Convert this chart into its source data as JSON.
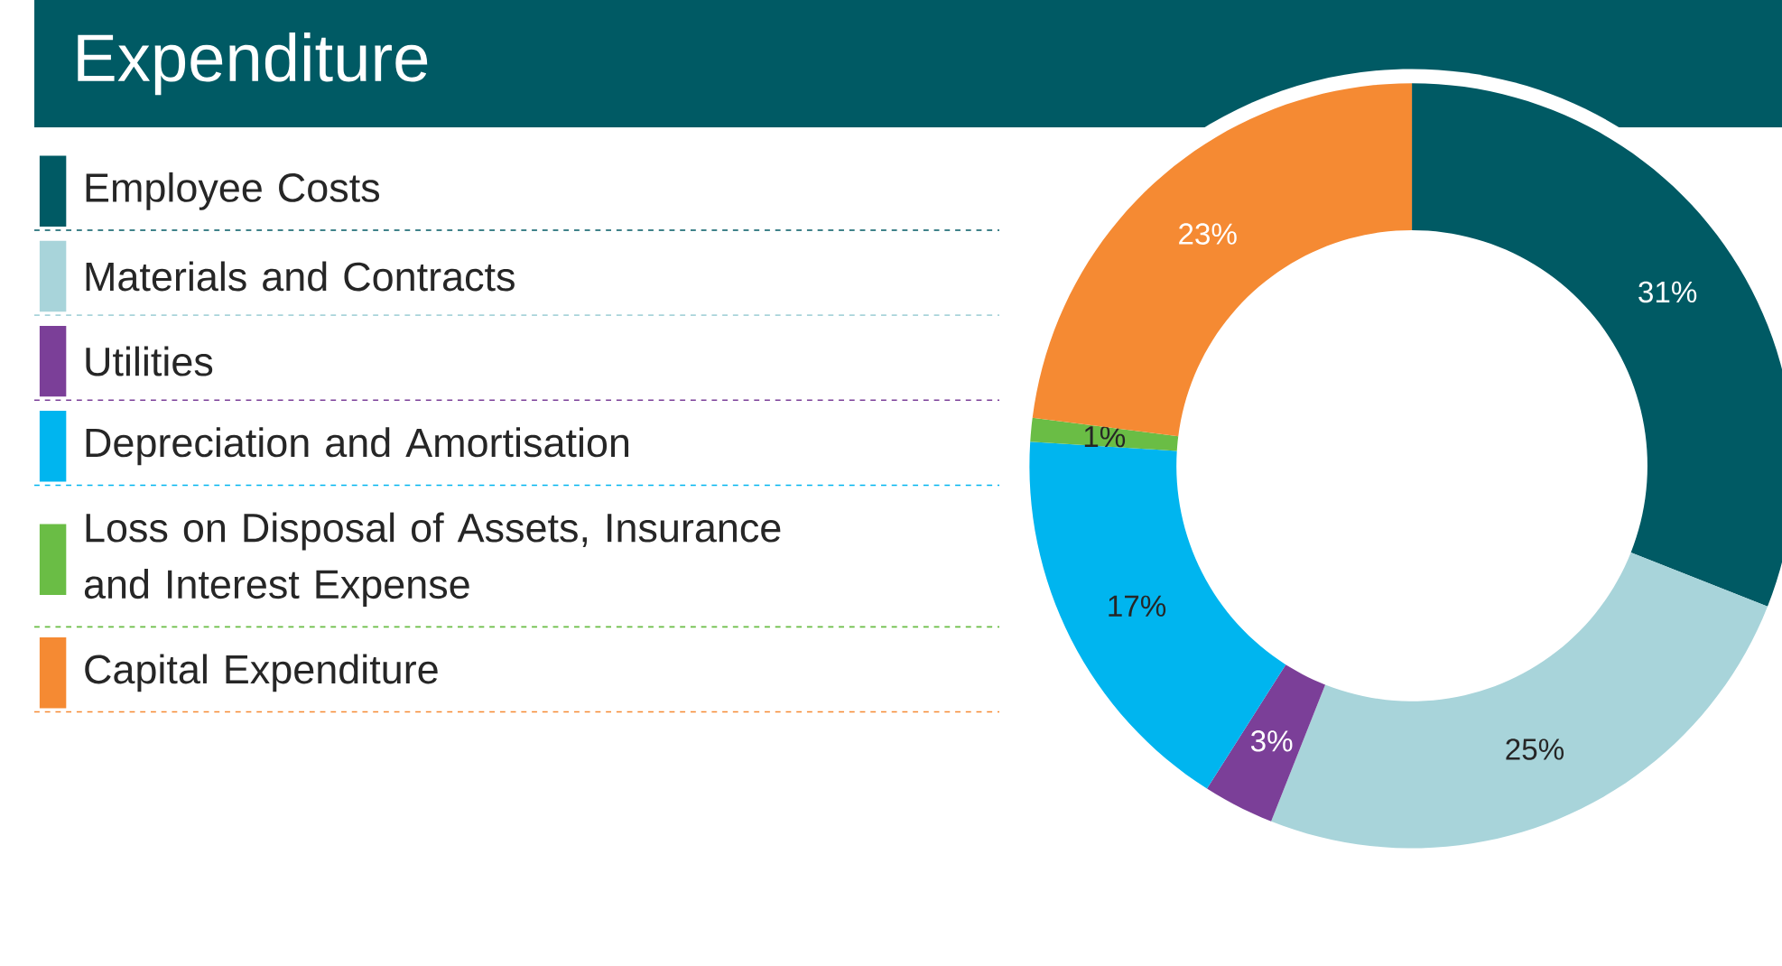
{
  "chart_data": {
    "type": "donut",
    "title": "Expenditure",
    "categories": [
      "Employee Costs",
      "Materials and Contracts",
      "Utilities",
      "Depreciation and Amortisation",
      "Loss on Disposal of Assets, Insurance and Interest Expense",
      "Capital Expenditure"
    ],
    "values": [
      31,
      25,
      3,
      17,
      1,
      23
    ],
    "colors": [
      "#005a64",
      "#a8d4da",
      "#7b3f98",
      "#00b5ef",
      "#6abd45",
      "#f58a33"
    ],
    "value_labels": [
      "31%",
      "25%",
      "3%",
      "17%",
      "1%",
      "23%"
    ],
    "legend": "left"
  }
}
